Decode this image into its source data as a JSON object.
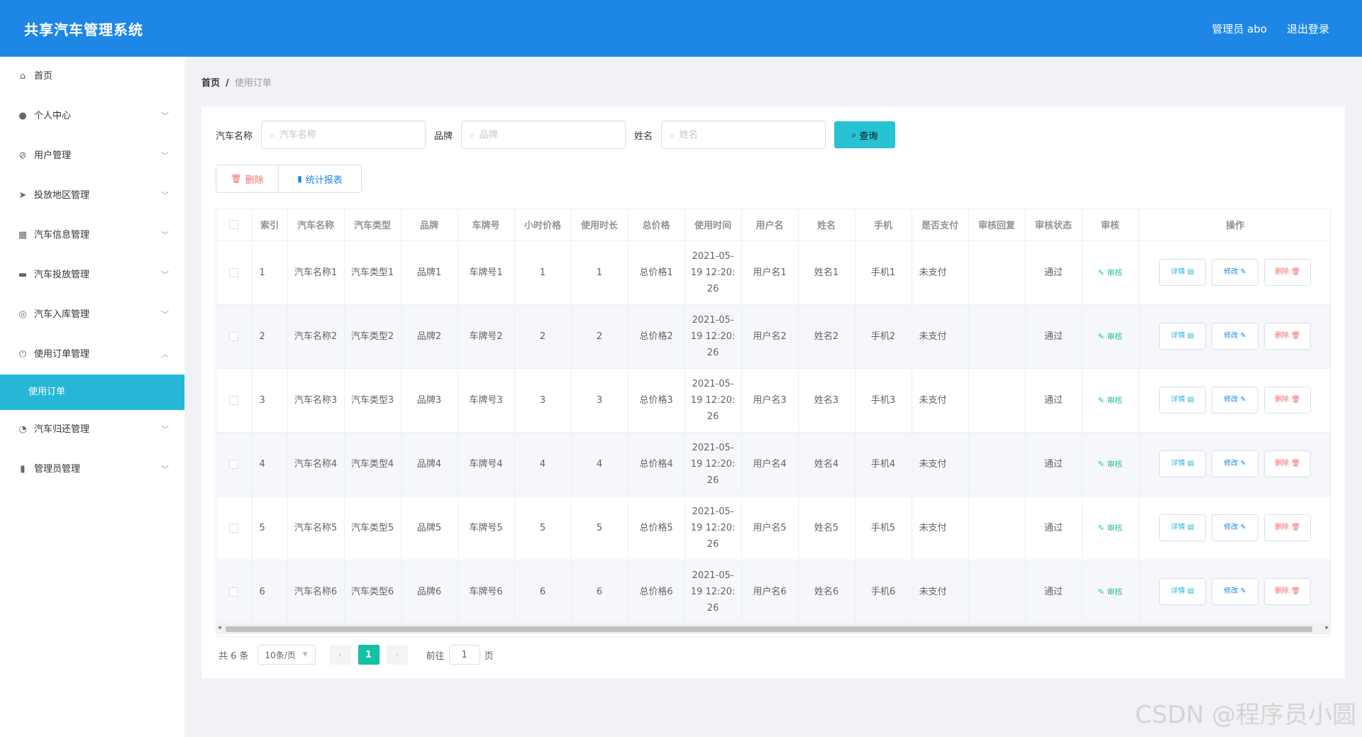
{
  "header": {
    "title": "共享汽车管理系统",
    "admin_label": "管理员 abo",
    "logout_label": "退出登录",
    "bg_color": "#1e87e5"
  },
  "sidebar": {
    "items": [
      {
        "label": "首页",
        "icon": "home-icon",
        "expandable": false
      },
      {
        "label": "个人中心",
        "icon": "user-icon",
        "expandable": true
      },
      {
        "label": "用户管理",
        "icon": "bell-off-icon",
        "expandable": true
      },
      {
        "label": "投放地区管理",
        "icon": "send-icon",
        "expandable": true
      },
      {
        "label": "汽车信息管理",
        "icon": "grid-icon",
        "expandable": true
      },
      {
        "label": "汽车投放管理",
        "icon": "wallet-icon",
        "expandable": true
      },
      {
        "label": "汽车入库管理",
        "icon": "target-icon",
        "expandable": true
      },
      {
        "label": "使用订单管理",
        "icon": "power-icon",
        "expandable": true,
        "expanded": true
      },
      {
        "label": "汽车归还管理",
        "icon": "compass-icon",
        "expandable": true
      },
      {
        "label": "管理员管理",
        "icon": "bar-chart-icon",
        "expandable": true
      }
    ],
    "active_sub": "使用订单",
    "active_color": "#27b6d6"
  },
  "breadcrumb": {
    "home": "首页",
    "separator": "/",
    "current": "使用订单"
  },
  "search": {
    "car_name_label": "汽车名称",
    "car_name_placeholder": "汽车名称",
    "brand_label": "品牌",
    "brand_placeholder": "品牌",
    "name_label": "姓名",
    "name_placeholder": "姓名",
    "button_label": "查询"
  },
  "actions": {
    "delete_label": "删除",
    "stats_label": "统计报表"
  },
  "table": {
    "columns": [
      "",
      "索引",
      "汽车名称",
      "汽车类型",
      "品牌",
      "车牌号",
      "小时价格",
      "使用时长",
      "总价格",
      "使用时间",
      "用户名",
      "姓名",
      "手机",
      "是否支付",
      "审核回复",
      "审核状态",
      "审核",
      "操作"
    ],
    "rows": [
      {
        "index": "1",
        "car_name": "汽车名称1",
        "car_type": "汽车类型1",
        "brand": "品牌1",
        "plate": "车牌号1",
        "hour_price": "1",
        "duration": "1",
        "total": "总价格1",
        "time": "2021-05-19 12:20:26",
        "username": "用户名1",
        "name": "姓名1",
        "phone": "手机1",
        "paid": "未支付",
        "reply": "",
        "status": "通过"
      },
      {
        "index": "2",
        "car_name": "汽车名称2",
        "car_type": "汽车类型2",
        "brand": "品牌2",
        "plate": "车牌号2",
        "hour_price": "2",
        "duration": "2",
        "total": "总价格2",
        "time": "2021-05-19 12:20:26",
        "username": "用户名2",
        "name": "姓名2",
        "phone": "手机2",
        "paid": "未支付",
        "reply": "",
        "status": "通过"
      },
      {
        "index": "3",
        "car_name": "汽车名称3",
        "car_type": "汽车类型3",
        "brand": "品牌3",
        "plate": "车牌号3",
        "hour_price": "3",
        "duration": "3",
        "total": "总价格3",
        "time": "2021-05-19 12:20:26",
        "username": "用户名3",
        "name": "姓名3",
        "phone": "手机3",
        "paid": "未支付",
        "reply": "",
        "status": "通过"
      },
      {
        "index": "4",
        "car_name": "汽车名称4",
        "car_type": "汽车类型4",
        "brand": "品牌4",
        "plate": "车牌号4",
        "hour_price": "4",
        "duration": "4",
        "total": "总价格4",
        "time": "2021-05-19 12:20:26",
        "username": "用户名4",
        "name": "姓名4",
        "phone": "手机4",
        "paid": "未支付",
        "reply": "",
        "status": "通过"
      },
      {
        "index": "5",
        "car_name": "汽车名称5",
        "car_type": "汽车类型5",
        "brand": "品牌5",
        "plate": "车牌号5",
        "hour_price": "5",
        "duration": "5",
        "total": "总价格5",
        "time": "2021-05-19 12:20:26",
        "username": "用户名5",
        "name": "姓名5",
        "phone": "手机5",
        "paid": "未支付",
        "reply": "",
        "status": "通过"
      },
      {
        "index": "6",
        "car_name": "汽车名称6",
        "car_type": "汽车类型6",
        "brand": "品牌6",
        "plate": "车牌号6",
        "hour_price": "6",
        "duration": "6",
        "total": "总价格6",
        "time": "2021-05-19 12:20:26",
        "username": "用户名6",
        "name": "姓名6",
        "phone": "手机6",
        "paid": "未支付",
        "reply": "",
        "status": "通过"
      }
    ],
    "audit_label": "审核",
    "detail_label": "详情",
    "edit_label": "修改",
    "delete_label": "删除"
  },
  "pagination": {
    "total": "共 6 条",
    "page_size": "10条/页",
    "current_page": "1",
    "goto_prefix": "前往",
    "goto_value": "1",
    "goto_suffix": "页"
  },
  "watermark": "CSDN @程序员小圆"
}
